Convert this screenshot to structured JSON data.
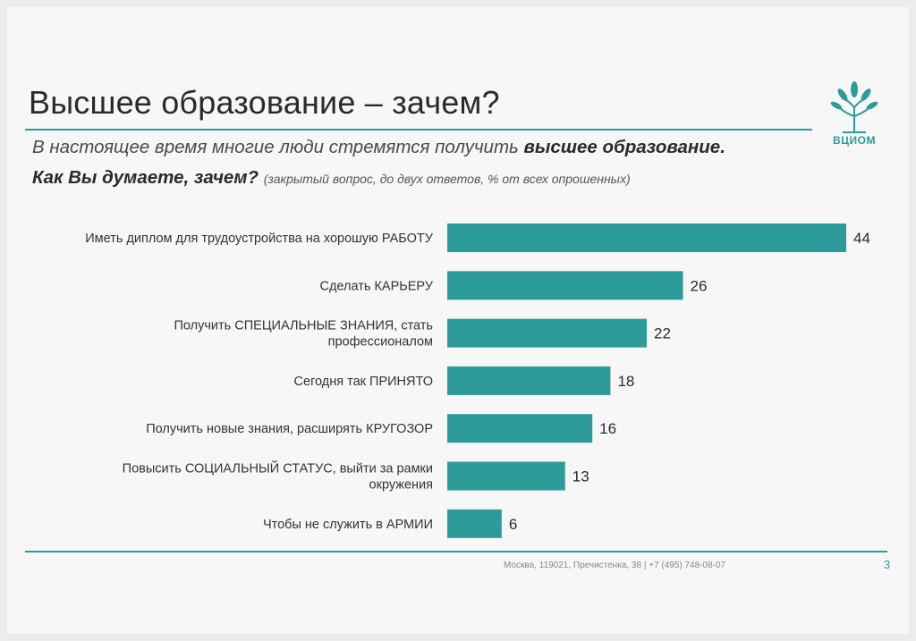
{
  "slide": {
    "title": "Высшее образование – зачем?",
    "question_part1": "В настоящее время многие люди стремятся получить ",
    "question_part1_bold": "высшее образование.",
    "question_part2": "Как Вы думаете, зачем?",
    "question_note": "(закрытый вопрос, до двух ответов, % от всех опрошенных)",
    "logo_text": "ВЦИОМ",
    "footer": "Москва, 119021, Пречистенка, 38 | +7 (495) 748-08-07",
    "page_number": "3",
    "accent_color": "#2d9b9a"
  },
  "chart_data": {
    "type": "bar",
    "orientation": "horizontal",
    "categories": [
      "Иметь диплом для трудоустройства на хорошую РАБОТУ",
      "Сделать КАРЬЕРУ",
      "Получить СПЕЦИАЛЬНЫЕ ЗНАНИЯ, стать профессионалом",
      "Сегодня так ПРИНЯТО",
      "Получить новые знания, расширять КРУГОЗОР",
      "Повысить СОЦИАЛЬНЫЙ СТАТУС, выйти за рамки окружения",
      "Чтобы не служить в АРМИИ"
    ],
    "category_lines": [
      [
        "Иметь диплом для трудоустройства на хорошую РАБОТУ"
      ],
      [
        "Сделать КАРЬЕРУ"
      ],
      [
        "Получить СПЕЦИАЛЬНЫЕ ЗНАНИЯ, стать",
        "профессионалом"
      ],
      [
        "Сегодня так ПРИНЯТО"
      ],
      [
        "Получить новые знания, расширять КРУГОЗОР"
      ],
      [
        "Повысить СОЦИАЛЬНЫЙ СТАТУС, выйти за рамки",
        "окружения"
      ],
      [
        "Чтобы не служить в АРМИИ"
      ]
    ],
    "values": [
      44,
      26,
      22,
      18,
      16,
      13,
      6
    ],
    "data_labels": [
      "44",
      "26",
      "22",
      "18",
      "16",
      "13",
      "6"
    ],
    "xlim": [
      0,
      44
    ],
    "bar_color": "#2d9b9a",
    "grid": false,
    "legend": "none"
  }
}
